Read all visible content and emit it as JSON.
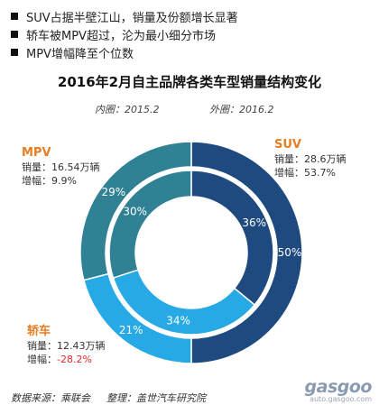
{
  "bullets": [
    "SUV占据半壁江山，销量及份额增长显著",
    "轿车被MPV超过，沦为最小细分市场",
    "MPV增幅降至个位数"
  ],
  "title": "2016年2月自主品牌各类车型销量结构变化",
  "subtitle_inner": "内圈：2015.2",
  "subtitle_outer": "外圈：2016.2",
  "callouts": {
    "suv": {
      "name": "SUV",
      "sales": "销量：28.6万辆",
      "growth": "增幅：53.7%"
    },
    "mpv": {
      "name": "MPV",
      "sales": "销量：16.54万辆",
      "growth": "增幅：9.9%"
    },
    "sedan": {
      "name": "轿车",
      "sales": "销量：12.43万辆",
      "growth_label": "增幅：",
      "growth_value": "-28.2%"
    }
  },
  "colors": {
    "suv": "#1f4a80",
    "sedan": "#27a9e6",
    "mpv": "#2f8193",
    "name": "#e67e22",
    "negative": "#e0292b"
  },
  "chart_data": {
    "type": "pie",
    "categories": [
      "SUV",
      "轿车",
      "MPV"
    ],
    "series": [
      {
        "name": "内圈：2015.2",
        "values": [
          36,
          34,
          30
        ],
        "labels": [
          "36%",
          "34%",
          "30%"
        ]
      },
      {
        "name": "外圈：2016.2",
        "values": [
          50,
          21,
          29
        ],
        "labels": [
          "50%",
          "21%",
          "29%"
        ]
      }
    ]
  },
  "source": {
    "data_source": "数据来源：乘联会",
    "compiled_by": "整理：盖世汽车研究院"
  },
  "watermark": {
    "logo": "gasgoo",
    "url": "auto.gasgoo.com"
  }
}
